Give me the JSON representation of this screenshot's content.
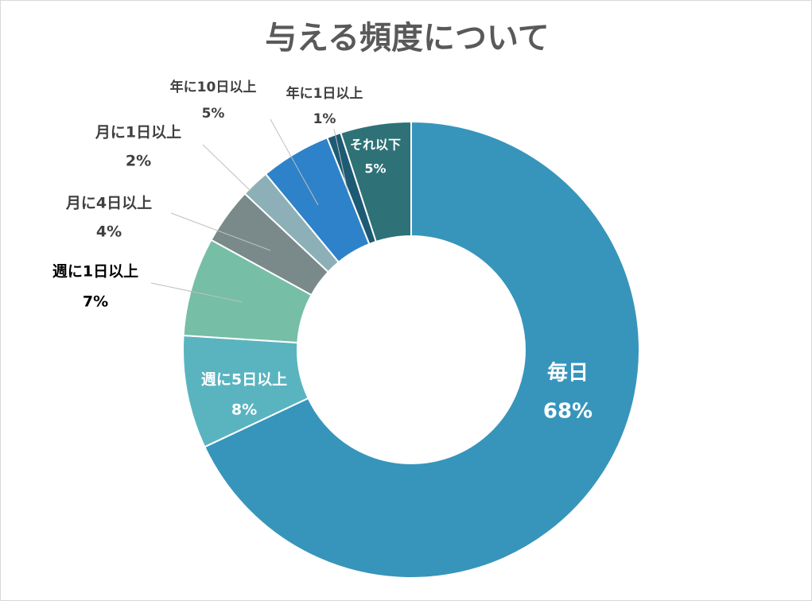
{
  "chart_data": {
    "type": "donut",
    "title": "与える頻度について",
    "categories": [
      "毎日",
      "週に5日以上",
      "週に1日以上",
      "月に4日以上",
      "月に1日以上",
      "年に10日以上",
      "年に1日以上",
      "それ以下"
    ],
    "values": [
      68,
      8,
      7,
      4,
      2,
      5,
      1,
      5
    ],
    "value_labels": [
      "68%",
      "8%",
      "7%",
      "4%",
      "2%",
      "5%",
      "1%",
      "5%"
    ],
    "colors": [
      "#3795bb",
      "#5ab4c0",
      "#76bea5",
      "#7a8a8a",
      "#8db0b8",
      "#2e82c9",
      "#1d5a73",
      "#2e7277"
    ]
  }
}
